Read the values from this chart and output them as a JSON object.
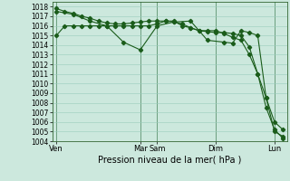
{
  "xlabel": "Pression niveau de la mer( hPa )",
  "bg_color": "#cce8dd",
  "grid_color": "#99ccbb",
  "line_color": "#1a5c1a",
  "vline_color": "#336633",
  "ylim": [
    1004,
    1018.5
  ],
  "ytick_min": 1004,
  "ytick_max": 1018,
  "day_labels": [
    "Ven",
    "Mar",
    "Sam",
    "Dim",
    "Lun"
  ],
  "day_positions": [
    0.0,
    10.0,
    12.0,
    19.0,
    26.0
  ],
  "xlim": [
    -0.5,
    27.5
  ],
  "series1_x": [
    0,
    1,
    2,
    3,
    4,
    5,
    6,
    7,
    8,
    9,
    10,
    11,
    12,
    13,
    14,
    15,
    16,
    17,
    18,
    19,
    20,
    21,
    22,
    23,
    24,
    25,
    26,
    27
  ],
  "series1_y": [
    1015.0,
    1016.0,
    1016.0,
    1016.0,
    1016.0,
    1016.0,
    1016.0,
    1016.0,
    1016.0,
    1016.0,
    1016.0,
    1016.0,
    1016.2,
    1016.5,
    1016.5,
    1016.0,
    1015.8,
    1015.5,
    1015.5,
    1015.5,
    1015.2,
    1014.8,
    1014.5,
    1013.0,
    1011.0,
    1008.5,
    1006.0,
    1005.2
  ],
  "series2_x": [
    0,
    1,
    2,
    3,
    4,
    5,
    6,
    7,
    8,
    9,
    10,
    11,
    12,
    13,
    14,
    15,
    16,
    17,
    18,
    19,
    20,
    21,
    22,
    23,
    24,
    25,
    26,
    27
  ],
  "series2_y": [
    1017.8,
    1017.5,
    1017.3,
    1017.0,
    1016.8,
    1016.5,
    1016.3,
    1016.2,
    1016.2,
    1016.3,
    1016.4,
    1016.5,
    1016.5,
    1016.5,
    1016.4,
    1016.2,
    1015.8,
    1015.5,
    1015.4,
    1015.3,
    1015.3,
    1015.2,
    1015.0,
    1013.8,
    1011.0,
    1007.5,
    1005.2,
    1004.3
  ],
  "series3_x": [
    0,
    2,
    4,
    6,
    8,
    10,
    12,
    14,
    16,
    18,
    20,
    21,
    22,
    23,
    24,
    25,
    26,
    27
  ],
  "series3_y": [
    1017.5,
    1017.2,
    1016.5,
    1016.0,
    1014.3,
    1013.5,
    1016.0,
    1016.4,
    1016.5,
    1014.5,
    1014.3,
    1014.2,
    1015.5,
    1015.3,
    1015.0,
    1008.5,
    1005.0,
    1004.5
  ],
  "xlabel_fontsize": 7.0,
  "ytick_fontsize": 5.5,
  "xtick_fontsize": 6.0
}
